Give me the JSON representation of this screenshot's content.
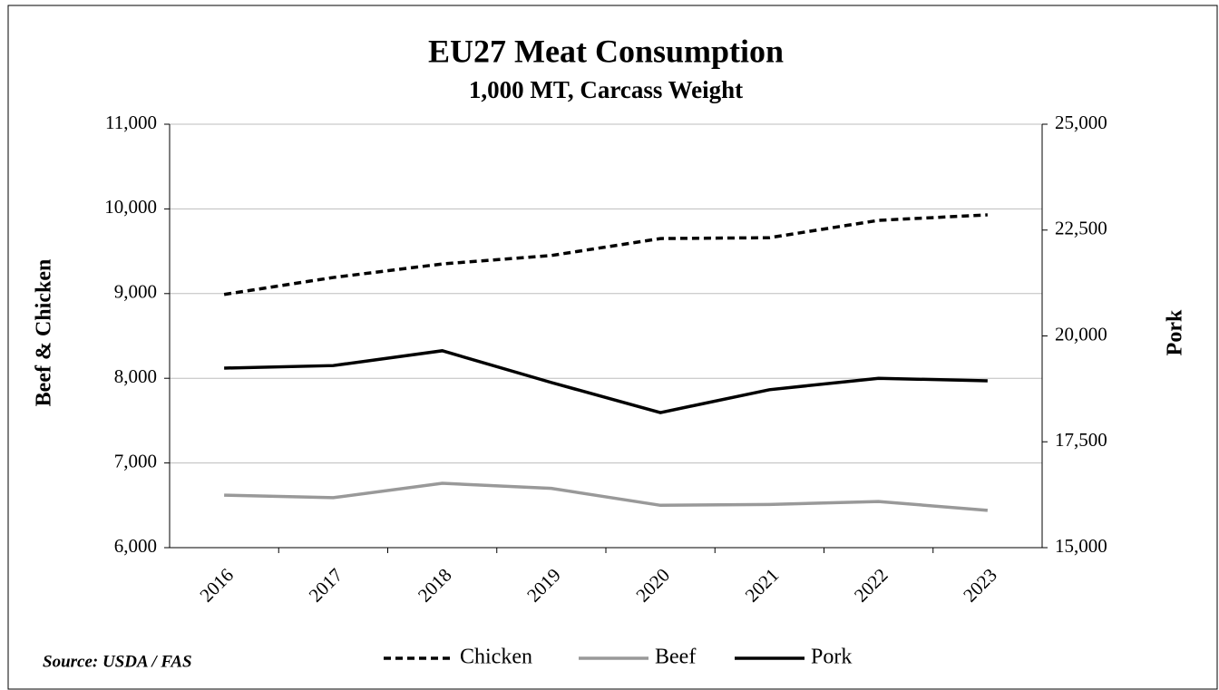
{
  "chart_data": {
    "type": "line",
    "title": "EU27 Meat Consumption",
    "subtitle": "1,000 MT, Carcass Weight",
    "y_label": "Beef & Chicken",
    "y2_label": "Pork",
    "source": "Source: USDA / FAS",
    "categories": [
      "2016",
      "2017",
      "2018",
      "2019",
      "2020",
      "2021",
      "2022",
      "2023"
    ],
    "series": [
      {
        "name": "Chicken",
        "color": "#000000",
        "line_style": "dashed",
        "values": [
          8990,
          9190,
          9350,
          9450,
          9650,
          9660,
          9865,
          9930
        ]
      },
      {
        "name": "Beef",
        "color": "#999999",
        "line_style": "solid",
        "values": [
          6620,
          6590,
          6760,
          6700,
          6500,
          6510,
          6545,
          6440
        ]
      },
      {
        "name": "Pork",
        "color": "#000000",
        "line_style": "solid",
        "axis": "y2",
        "values": [
          19240,
          19300,
          19650,
          18900,
          18190,
          18730,
          19000,
          18940
        ]
      }
    ],
    "ylim": [
      6000,
      11000
    ],
    "yticks": [
      {
        "value": 6000,
        "label": "6,000"
      },
      {
        "value": 7000,
        "label": "7,000"
      },
      {
        "value": 8000,
        "label": "8,000"
      },
      {
        "value": 9000,
        "label": "9,000"
      },
      {
        "value": 10000,
        "label": "10,000"
      },
      {
        "value": 11000,
        "label": "11,000"
      }
    ],
    "y2lim": [
      15000,
      25000
    ],
    "y2ticks": [
      {
        "value": 15000,
        "label": "15,000"
      },
      {
        "value": 17500,
        "label": "17,500"
      },
      {
        "value": 20000,
        "label": "20,000"
      },
      {
        "value": 22500,
        "label": "22,500"
      },
      {
        "value": 25000,
        "label": "25,000"
      }
    ],
    "grid": true
  }
}
